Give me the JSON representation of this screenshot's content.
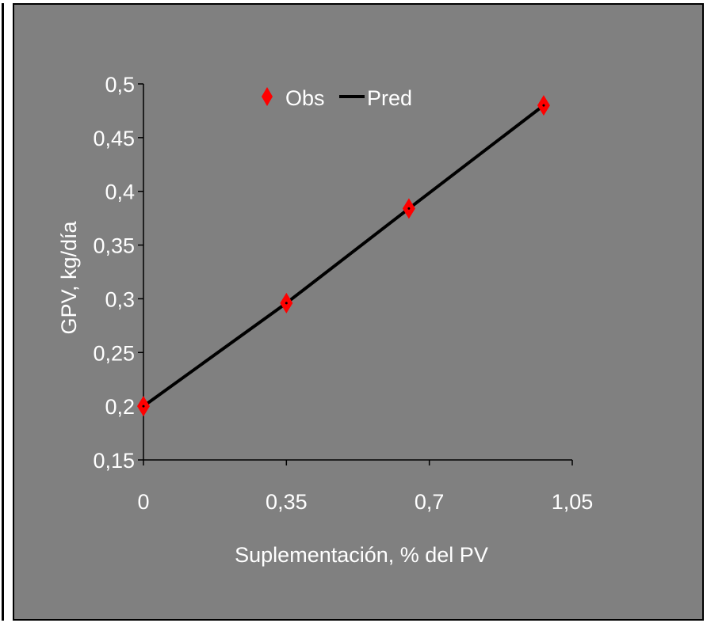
{
  "chart_data": {
    "type": "line",
    "title": "",
    "xlabel": "Suplementación, % del PV",
    "ylabel": "GPV, kg/día",
    "xlim": [
      0,
      1.05
    ],
    "ylim": [
      0.15,
      0.5
    ],
    "x_ticks": [
      "0",
      "0,35",
      "0,7",
      "1,05"
    ],
    "x_tick_values": [
      0,
      0.35,
      0.7,
      1.05
    ],
    "y_ticks": [
      "0,15",
      "0,2",
      "0,25",
      "0,3",
      "0,35",
      "0,4",
      "0,45",
      "0,5"
    ],
    "y_tick_values": [
      0.15,
      0.2,
      0.25,
      0.3,
      0.35,
      0.4,
      0.45,
      0.5
    ],
    "grid": false,
    "legend_position": "top",
    "series": [
      {
        "name": "Obs",
        "style": "markers",
        "marker": "diamond",
        "color": "#ff0000",
        "x": [
          0,
          0.35,
          0.65,
          0.98
        ],
        "y": [
          0.2,
          0.296,
          0.384,
          0.48
        ]
      },
      {
        "name": "Pred",
        "style": "line",
        "color": "#000000",
        "x": [
          0,
          0.35,
          0.65,
          0.98
        ],
        "y": [
          0.2,
          0.296,
          0.384,
          0.48
        ]
      }
    ]
  }
}
